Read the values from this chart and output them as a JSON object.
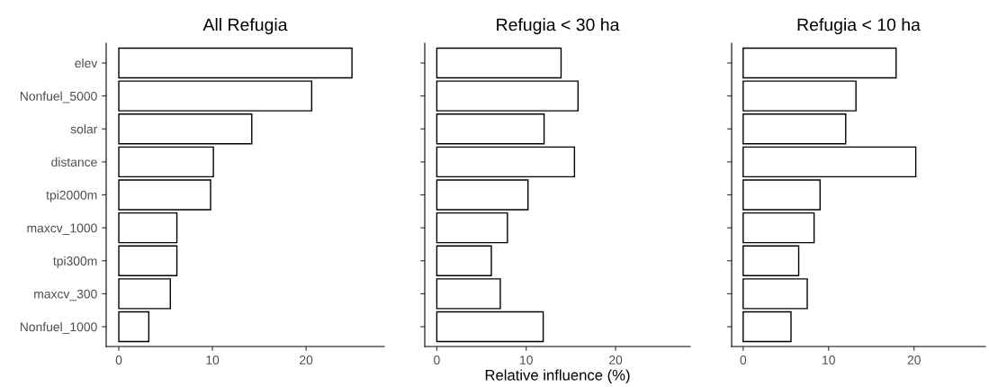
{
  "chart_data": [
    {
      "type": "bar",
      "orientation": "horizontal",
      "title": "All Refugia",
      "categories": [
        "elev",
        "Nonfuel_5000",
        "solar",
        "distance",
        "tpi2000m",
        "maxcv_1000",
        "tpi300m",
        "maxcv_300",
        "Nonfuel_1000"
      ],
      "values": [
        24.9,
        20.6,
        14.2,
        10.1,
        9.8,
        6.2,
        6.2,
        5.5,
        3.2
      ],
      "color": "#ffffff",
      "xlim": [
        -1.35,
        28.35
      ],
      "xticks": [
        0,
        10,
        20
      ],
      "grid": false
    },
    {
      "type": "bar",
      "orientation": "horizontal",
      "title": "Refugia < 30 ha",
      "xlabel": "Relative influence (%)",
      "categories": [
        null,
        null,
        null,
        null,
        null,
        null,
        null,
        null,
        null
      ],
      "values": [
        13.9,
        15.8,
        12.0,
        15.4,
        10.2,
        7.9,
        6.1,
        7.1,
        11.9
      ],
      "color": "#ffffff",
      "xlim": [
        -1.35,
        28.35
      ],
      "xticks": [
        0,
        10,
        20
      ],
      "grid": false,
      "tick_labels": "x"
    },
    {
      "type": "bar",
      "orientation": "horizontal",
      "title": "Refugia < 10 ha",
      "categories": [
        null,
        null,
        null,
        null,
        null,
        null,
        null,
        null,
        null
      ],
      "values": [
        17.9,
        13.2,
        12.0,
        20.2,
        9.0,
        8.3,
        6.5,
        7.5,
        5.6
      ],
      "color": "#ffffff",
      "xlim": [
        -1.35,
        28.35
      ],
      "xticks": [
        0,
        10,
        20
      ],
      "grid": false,
      "tick_labels": "x"
    }
  ]
}
